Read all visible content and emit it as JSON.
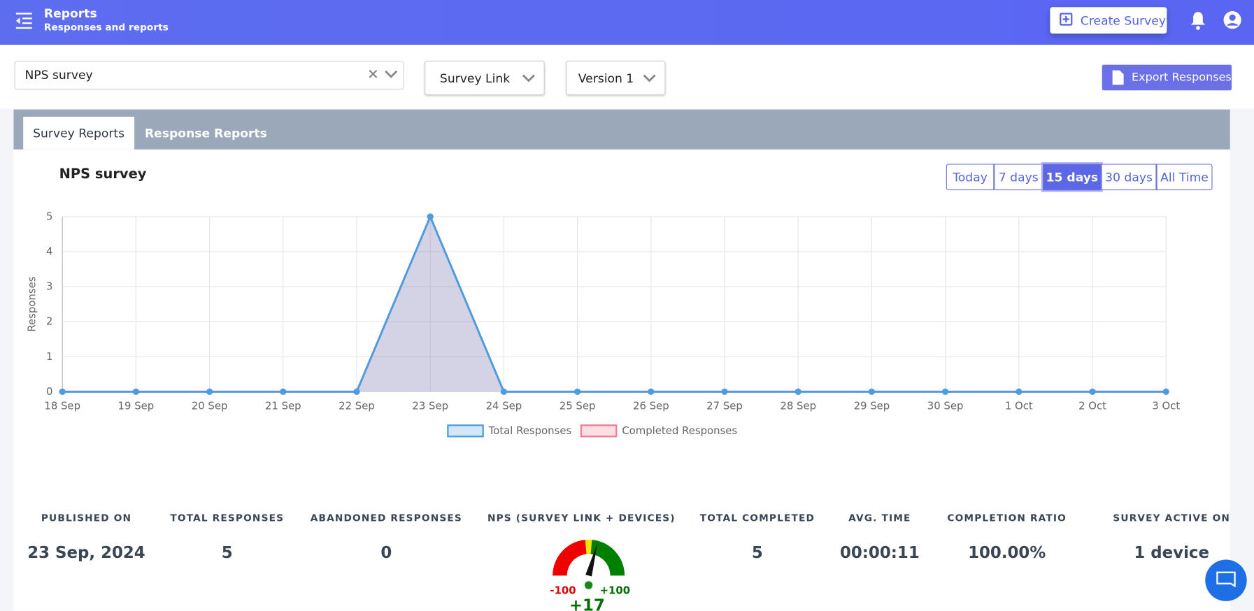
{
  "header": {
    "title": "Reports",
    "subtitle": "Responses and reports",
    "create_button": "Create Survey"
  },
  "filters": {
    "survey": "NPS survey",
    "source": "Survey Link",
    "version": "Version 1",
    "export_button": "Export Responses"
  },
  "tabs": [
    "Survey Reports",
    "Response Reports"
  ],
  "time_ranges": [
    "Today",
    "7 days",
    "15 days",
    "30 days",
    "All Time"
  ],
  "chart_data": {
    "type": "line",
    "title": "NPS survey",
    "y_label": "Responses",
    "categories": [
      "18 Sep",
      "19 Sep",
      "20 Sep",
      "21 Sep",
      "22 Sep",
      "23 Sep",
      "24 Sep",
      "25 Sep",
      "26 Sep",
      "27 Sep",
      "28 Sep",
      "29 Sep",
      "30 Sep",
      "1 Oct",
      "2 Oct",
      "3 Oct"
    ],
    "series": [
      {
        "name": "Total Responses",
        "color": "#4a9de0",
        "values": [
          0,
          0,
          0,
          0,
          0,
          5,
          0,
          0,
          0,
          0,
          0,
          0,
          0,
          0,
          0,
          0
        ]
      },
      {
        "name": "Completed Responses",
        "color": "#f27a93",
        "values": [
          0,
          0,
          0,
          0,
          0,
          5,
          0,
          0,
          0,
          0,
          0,
          0,
          0,
          0,
          0,
          0
        ]
      }
    ],
    "ylim": [
      0,
      5
    ],
    "yticks": [
      0,
      1,
      2,
      3,
      4,
      5
    ],
    "grid": true,
    "legend": "bottom"
  },
  "stats": [
    {
      "label": "PUBLISHED ON",
      "value": "23 Sep, 2024"
    },
    {
      "label": "TOTAL RESPONSES",
      "value": "5"
    },
    {
      "label": "ABANDONED RESPONSES",
      "value": "0"
    },
    {
      "label": "NPS (SURVEY LINK + DEVICES)"
    },
    {
      "label": "TOTAL COMPLETED",
      "value": "5"
    },
    {
      "label": "AVG. TIME",
      "value": "00:00:11"
    },
    {
      "label": "COMPLETION RATIO",
      "value": "100.00%"
    },
    {
      "label": "SURVEY ACTIVE ON",
      "value": "1 device"
    }
  ],
  "gauge": {
    "min": -100,
    "max": {
      "value": 100,
      "label": "+100"
    },
    "value": 17,
    "value_label": "+17"
  }
}
